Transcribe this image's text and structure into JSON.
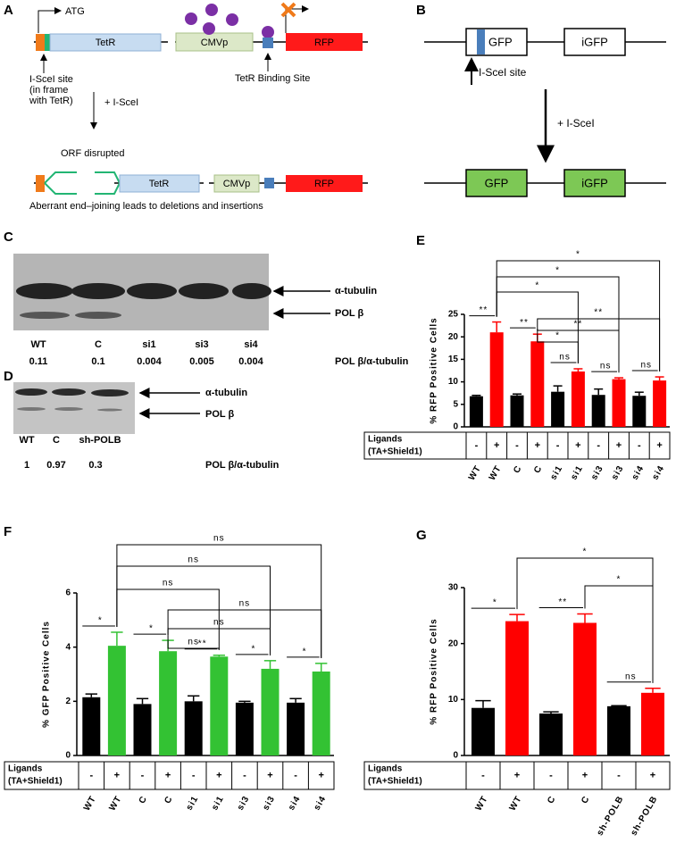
{
  "panel_a": {
    "label": "A",
    "atg": "ATG",
    "tetr": "TetR",
    "cmvp": "CMVp",
    "rfp": "RFP",
    "site": [
      "I-SceI site",
      "(in frame",
      "with TetR)"
    ],
    "binding_site": "TetR Binding Site",
    "treatment": "+ I-SceI",
    "orf": "ORF disrupted",
    "tetr_2": "TetR",
    "cmvp_2": "CMVp",
    "rfp_2": "RFP",
    "caption": "Aberrant end–joining leads to deletions and insertions"
  },
  "panel_b": {
    "label": "B",
    "gfp": "GFP",
    "igfp": "iGFP",
    "site": "I-SceI site",
    "treatment": "+ I-SceI",
    "gfp_2": "GFP",
    "igfp_2": "iGFP"
  },
  "panel_c": {
    "label": "C",
    "bands": [
      "α-tubulin",
      "POL β"
    ],
    "lanes": [
      "WT",
      "C",
      "si1",
      "si3",
      "si4"
    ],
    "ratios": [
      "0.11",
      "0.1",
      "0.004",
      "0.005",
      "0.004"
    ],
    "ratio_label": "POL β/α-tubulin"
  },
  "panel_d": {
    "label": "D",
    "bands": [
      "α-tubulin",
      "POL β"
    ],
    "lanes": [
      "WT",
      "C",
      "sh-POLB"
    ],
    "ratios": [
      "1",
      "0.97",
      "0.3"
    ],
    "ratio_label": "POL β/α-tubulin"
  },
  "chart_data": [
    {
      "type": "bar",
      "panel": "E",
      "ylabel": "% RFP Positive Cells",
      "ylim": [
        0,
        25
      ],
      "yticks": [
        0,
        5,
        10,
        15,
        20,
        25
      ],
      "categories": [
        "WT",
        "WT",
        "C",
        "C",
        "si1",
        "si1",
        "si3",
        "si3",
        "si4",
        "si4"
      ],
      "values": [
        6.8,
        21,
        7,
        19,
        7.8,
        12.3,
        7.1,
        10.6,
        6.9,
        10.3
      ],
      "errors": [
        0.2,
        2.3,
        0.3,
        1.6,
        1.3,
        0.6,
        1.3,
        0.3,
        0.8,
        0.8
      ],
      "colors": [
        "#000000",
        "#ff0000",
        "#000000",
        "#ff0000",
        "#000000",
        "#ff0000",
        "#000000",
        "#ff0000",
        "#000000",
        "#ff0000"
      ],
      "row_label": [
        "Ligands",
        "(TA+Shield1)"
      ],
      "ligands": [
        "-",
        "+",
        "-",
        "+",
        "-",
        "+",
        "-",
        "+",
        "-",
        "+"
      ],
      "pair_labels": [
        "**",
        "**",
        "ns",
        "ns",
        "ns"
      ],
      "comparisons": [
        "*",
        "*",
        "*",
        "**",
        "**",
        "*"
      ]
    },
    {
      "type": "bar",
      "panel": "F",
      "ylabel": "% GFP Positive Cells",
      "ylim": [
        0,
        6
      ],
      "yticks": [
        0,
        2,
        4,
        6
      ],
      "categories": [
        "WT",
        "WT",
        "C",
        "C",
        "si1",
        "si1",
        "si3",
        "si3",
        "si4",
        "si4"
      ],
      "values": [
        2.15,
        4.05,
        1.9,
        3.85,
        2.0,
        3.65,
        1.95,
        3.2,
        1.95,
        3.1
      ],
      "errors": [
        0.12,
        0.5,
        0.2,
        0.4,
        0.2,
        0.05,
        0.05,
        0.3,
        0.15,
        0.3
      ],
      "colors": [
        "#000000",
        "#33c233",
        "#000000",
        "#33c233",
        "#000000",
        "#33c233",
        "#000000",
        "#33c233",
        "#000000",
        "#33c233"
      ],
      "row_label": [
        "Ligands",
        "(TA+Shield1)"
      ],
      "ligands": [
        "-",
        "+",
        "-",
        "+",
        "-",
        "+",
        "-",
        "+",
        "-",
        "+"
      ],
      "pair_labels": [
        "*",
        "*",
        "**",
        "*",
        "*"
      ],
      "comparisons": [
        "ns",
        "ns",
        "ns",
        "ns",
        "ns",
        "ns"
      ]
    },
    {
      "type": "bar",
      "panel": "G",
      "ylabel": "% RFP Positive Cells",
      "ylim": [
        0,
        30
      ],
      "yticks": [
        0,
        10,
        20,
        30
      ],
      "categories": [
        "WT",
        "WT",
        "C",
        "C",
        "sh-POLB",
        "sh-POLB"
      ],
      "values": [
        8.5,
        24,
        7.5,
        23.7,
        8.8,
        11.2
      ],
      "errors": [
        1.3,
        1.2,
        0.3,
        1.6,
        0.1,
        0.8
      ],
      "colors": [
        "#000000",
        "#ff0000",
        "#000000",
        "#ff0000",
        "#000000",
        "#ff0000"
      ],
      "row_label": [
        "Ligands",
        "(TA+Shield1)"
      ],
      "ligands": [
        "-",
        "+",
        "-",
        "+",
        "-",
        "+"
      ],
      "pair_labels": [
        "*",
        "**",
        "ns"
      ],
      "comparisons": [
        "*",
        "*"
      ]
    }
  ]
}
